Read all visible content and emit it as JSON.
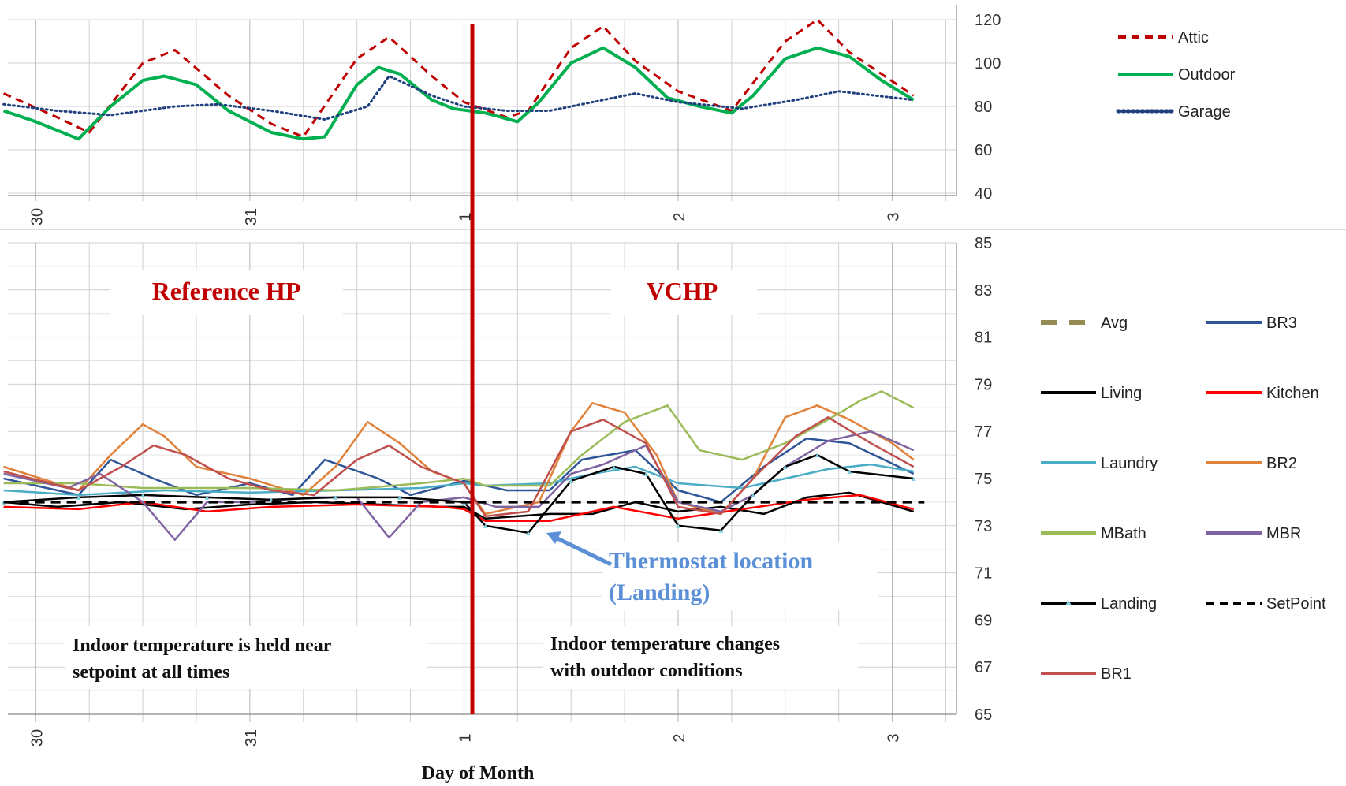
{
  "chart_data": [
    {
      "type": "line",
      "xlabel": "",
      "ylabel": "",
      "x_tick_labels": [
        "30",
        "31",
        "1",
        "2",
        "3"
      ],
      "x_tick_values": [
        30,
        31,
        32,
        33,
        34
      ],
      "xlim": [
        29.87,
        34.3
      ],
      "ylim": [
        40,
        120
      ],
      "y_ticks": [
        40,
        60,
        80,
        100,
        120
      ],
      "grid": true,
      "legend_position": "right",
      "series": [
        {
          "name": "Attic",
          "color": "#c00000",
          "style": "dashed",
          "x": [
            29.85,
            30.1,
            30.25,
            30.5,
            30.65,
            30.9,
            31.1,
            31.25,
            31.5,
            31.65,
            31.85,
            32.0,
            32.2,
            32.3,
            32.5,
            32.65,
            32.8,
            33.0,
            33.25,
            33.5,
            33.65,
            33.8,
            34.1
          ],
          "y": [
            86,
            75,
            68,
            100,
            106,
            85,
            72,
            66,
            102,
            112,
            94,
            82,
            75,
            78,
            107,
            117,
            101,
            87,
            78,
            110,
            120,
            105,
            85
          ]
        },
        {
          "name": "Outdoor",
          "color": "#00b050",
          "style": "solid",
          "x": [
            29.85,
            30.0,
            30.2,
            30.35,
            30.5,
            30.6,
            30.75,
            30.9,
            31.1,
            31.25,
            31.35,
            31.5,
            31.6,
            31.7,
            31.85,
            31.95,
            32.1,
            32.25,
            32.35,
            32.5,
            32.65,
            32.8,
            32.95,
            33.1,
            33.25,
            33.35,
            33.5,
            33.65,
            33.8,
            33.95,
            34.1
          ],
          "y": [
            78,
            73,
            65,
            80,
            92,
            94,
            90,
            78,
            68,
            65,
            66,
            90,
            98,
            95,
            83,
            79,
            77,
            73,
            82,
            100,
            107,
            98,
            84,
            80,
            77,
            85,
            102,
            107,
            103,
            92,
            83
          ]
        },
        {
          "name": "Garage",
          "color": "#1f3f7f",
          "style": "dotted",
          "x": [
            29.85,
            30.1,
            30.35,
            30.65,
            30.85,
            31.1,
            31.35,
            31.55,
            31.65,
            31.85,
            32.0,
            32.2,
            32.4,
            32.65,
            32.8,
            33.0,
            33.3,
            33.55,
            33.75,
            34.1
          ],
          "y": [
            81,
            78,
            76,
            80,
            81,
            78,
            74,
            80,
            94,
            85,
            80,
            78,
            78,
            83,
            86,
            82,
            79,
            83,
            87,
            83
          ]
        }
      ]
    },
    {
      "type": "line",
      "xlabel": "Day of Month",
      "ylabel": "",
      "x_tick_labels": [
        "30",
        "31",
        "1",
        "2",
        "3"
      ],
      "x_tick_values": [
        30,
        31,
        32,
        33,
        34
      ],
      "xlim": [
        29.87,
        34.3
      ],
      "ylim": [
        65,
        85
      ],
      "y_ticks": [
        65,
        67,
        69,
        71,
        73,
        75,
        77,
        79,
        81,
        83,
        85
      ],
      "grid": true,
      "legend_position": "right",
      "series": [
        {
          "name": "Avg",
          "color": "#948a54",
          "style": "dashed",
          "x": [
            29.85,
            30.5,
            31.0,
            31.5,
            32.0,
            32.5,
            33.0,
            33.5,
            34.1
          ],
          "y": [
            74.5,
            74.6,
            74.4,
            74.5,
            74.4,
            75.0,
            74.8,
            75.2,
            75.3
          ]
        },
        {
          "name": "BR3",
          "color": "#2e5597",
          "style": "solid",
          "x": [
            29.85,
            30.2,
            30.35,
            30.55,
            30.75,
            31.0,
            31.2,
            31.35,
            31.6,
            31.75,
            32.0,
            32.2,
            32.4,
            32.55,
            32.8,
            33.0,
            33.2,
            33.4,
            33.6,
            33.8,
            34.1
          ],
          "y": [
            75.0,
            74.3,
            75.8,
            75.0,
            74.3,
            74.8,
            74.3,
            75.8,
            75.0,
            74.3,
            74.9,
            74.5,
            74.5,
            75.8,
            76.2,
            74.5,
            74.0,
            75.5,
            76.7,
            76.5,
            75.2
          ]
        },
        {
          "name": "Living",
          "color": "#000000",
          "style": "solid",
          "x": [
            29.85,
            30.1,
            30.4,
            30.7,
            31.0,
            31.3,
            31.6,
            31.9,
            32.0,
            32.1,
            32.4,
            32.6,
            32.8,
            33.0,
            33.2,
            33.4,
            33.6,
            33.8,
            34.1
          ],
          "y": [
            74.0,
            73.8,
            74.0,
            73.7,
            73.9,
            74.0,
            73.9,
            73.8,
            73.8,
            73.3,
            73.5,
            73.5,
            74.0,
            73.6,
            73.8,
            73.5,
            74.2,
            74.4,
            73.6
          ]
        },
        {
          "name": "Kitchen",
          "color": "#ff0000",
          "style": "solid",
          "x": [
            29.85,
            30.2,
            30.5,
            30.8,
            31.1,
            31.5,
            31.9,
            32.0,
            32.1,
            32.4,
            32.7,
            33.0,
            33.3,
            33.6,
            33.85,
            34.1
          ],
          "y": [
            73.8,
            73.7,
            74.0,
            73.6,
            73.8,
            73.9,
            73.8,
            73.7,
            73.2,
            73.2,
            73.8,
            73.3,
            73.7,
            74.1,
            74.3,
            73.7
          ]
        },
        {
          "name": "Laundry",
          "color": "#4bacc6",
          "style": "solid",
          "x": [
            29.85,
            30.2,
            30.6,
            31.0,
            31.4,
            31.8,
            32.0,
            32.1,
            32.4,
            32.6,
            32.8,
            33.0,
            33.3,
            33.5,
            33.7,
            33.9,
            34.1
          ],
          "y": [
            74.5,
            74.3,
            74.5,
            74.4,
            74.5,
            74.6,
            74.8,
            74.7,
            74.8,
            75.2,
            75.5,
            74.8,
            74.6,
            75.0,
            75.4,
            75.6,
            75.3
          ]
        },
        {
          "name": "BR2",
          "color": "#e0823b",
          "style": "solid",
          "x": [
            29.85,
            30.2,
            30.35,
            30.5,
            30.6,
            30.75,
            31.0,
            31.25,
            31.4,
            31.55,
            31.7,
            31.85,
            32.0,
            32.1,
            32.35,
            32.5,
            32.6,
            32.75,
            32.9,
            33.0,
            33.2,
            33.35,
            33.5,
            33.65,
            33.8,
            34.0,
            34.1
          ],
          "y": [
            75.5,
            74.5,
            76.0,
            77.3,
            76.8,
            75.5,
            75.0,
            74.3,
            75.5,
            77.4,
            76.5,
            75.3,
            74.8,
            73.5,
            74.0,
            77.0,
            78.2,
            77.8,
            76.0,
            74.0,
            73.5,
            75.0,
            77.6,
            78.1,
            77.5,
            76.5,
            75.8
          ]
        },
        {
          "name": "MBath",
          "color": "#9bbb59",
          "style": "solid",
          "x": [
            29.85,
            30.2,
            30.5,
            30.8,
            31.0,
            31.4,
            31.8,
            32.0,
            32.1,
            32.4,
            32.55,
            32.75,
            32.95,
            33.1,
            33.3,
            33.5,
            33.7,
            33.85,
            33.95,
            34.1
          ],
          "y": [
            74.8,
            74.8,
            74.6,
            74.6,
            74.6,
            74.5,
            74.8,
            75.0,
            74.7,
            74.7,
            76.0,
            77.4,
            78.1,
            76.2,
            75.8,
            76.5,
            77.5,
            78.3,
            78.7,
            78.0
          ]
        },
        {
          "name": "MBR",
          "color": "#8064a2",
          "style": "solid",
          "x": [
            29.85,
            30.15,
            30.3,
            30.5,
            30.65,
            30.8,
            31.0,
            31.3,
            31.5,
            31.65,
            31.8,
            32.0,
            32.15,
            32.35,
            32.5,
            32.65,
            32.85,
            33.0,
            33.2,
            33.35,
            33.5,
            33.7,
            33.9,
            34.1
          ],
          "y": [
            75.2,
            74.6,
            75.2,
            74.0,
            72.4,
            74.0,
            74.0,
            74.2,
            74.2,
            72.5,
            74.0,
            74.2,
            73.8,
            73.8,
            75.2,
            75.6,
            76.4,
            74.0,
            73.6,
            74.3,
            75.5,
            76.6,
            77.0,
            76.2
          ]
        },
        {
          "name": "Landing",
          "color": "#000000",
          "style": "solid",
          "x": [
            29.85,
            30.2,
            30.5,
            30.8,
            31.1,
            31.4,
            31.7,
            32.0,
            32.1,
            32.3,
            32.5,
            32.7,
            32.85,
            33.0,
            33.2,
            33.35,
            33.5,
            33.65,
            33.8,
            34.1
          ],
          "y": [
            74.0,
            74.2,
            74.3,
            74.2,
            74.1,
            74.2,
            74.2,
            74.0,
            73.0,
            72.7,
            74.9,
            75.5,
            75.2,
            73.0,
            72.8,
            74.3,
            75.5,
            76.0,
            75.3,
            75.0
          ]
        },
        {
          "name": "SetPoint",
          "color": "#000000",
          "style": "dashed",
          "x": [
            29.85,
            34.15
          ],
          "y": [
            74,
            74
          ]
        },
        {
          "name": "BR1",
          "color": "#c0504d",
          "style": "solid",
          "x": [
            29.85,
            30.2,
            30.4,
            30.55,
            30.7,
            30.9,
            31.1,
            31.3,
            31.5,
            31.65,
            31.8,
            32.0,
            32.1,
            32.3,
            32.5,
            32.65,
            32.85,
            33.0,
            33.2,
            33.35,
            33.55,
            33.7,
            33.9,
            34.1
          ],
          "y": [
            75.3,
            74.5,
            75.5,
            76.4,
            76.0,
            75.0,
            74.5,
            74.3,
            75.8,
            76.4,
            75.5,
            74.8,
            73.4,
            73.6,
            77.0,
            77.5,
            76.5,
            73.8,
            73.5,
            75.0,
            76.8,
            77.6,
            76.5,
            75.5
          ]
        }
      ],
      "annotations": {
        "reference_title": "Reference HP",
        "vchp_title": "VCHP",
        "thermostat_line1": "Thermostat location",
        "thermostat_line2": "(Landing)",
        "left_note_line1": "Indoor temperature is held near",
        "left_note_line2": "setpoint at all times",
        "right_note_line1": "Indoor temperature changes",
        "right_note_line2": "with outdoor conditions"
      }
    }
  ],
  "colors": {
    "divider": "#c00000",
    "title_red": "#c00000",
    "thermostat_blue": "#5b8fd6"
  }
}
